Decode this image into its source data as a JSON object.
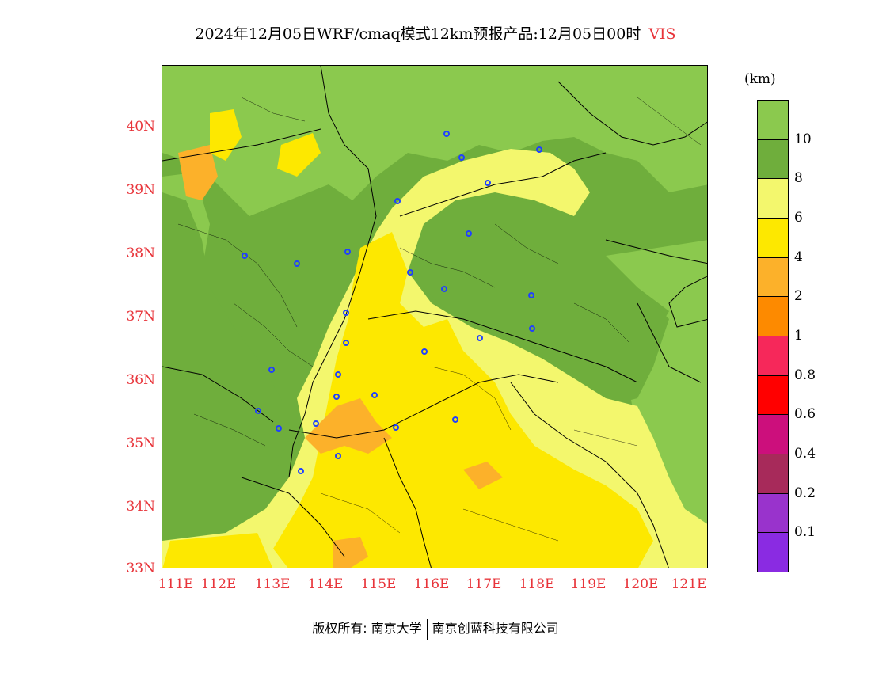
{
  "title": {
    "text": "2024年12月05日WRF/cmaq模式12km预报产品:12月05日00时",
    "variable": "VIS"
  },
  "map": {
    "lat_labels": [
      "40N",
      "39N",
      "38N",
      "37N",
      "36N",
      "35N",
      "34N",
      "33N"
    ],
    "lon_labels": [
      "111E",
      "112E",
      "113E",
      "114E",
      "115E",
      "116E",
      "117E",
      "118E",
      "119E",
      "120E",
      "121E"
    ],
    "extent": {
      "lon_min": 111,
      "lon_max": 121.3,
      "lat_min": 33,
      "lat_max": 41
    }
  },
  "legend": {
    "unit": "(km)",
    "levels": [
      {
        "label": "10",
        "color": "#8bc94e"
      },
      {
        "label": "8",
        "color": "#6fae3c"
      },
      {
        "label": "6",
        "color": "#f3f76d"
      },
      {
        "label": "4",
        "color": "#fde800"
      },
      {
        "label": "2",
        "color": "#fcb12a"
      },
      {
        "label": "1",
        "color": "#fd8a00"
      },
      {
        "label": "0.8",
        "color": "#f6285a"
      },
      {
        "label": "0.6",
        "color": "#ff0000"
      },
      {
        "label": "0.4",
        "color": "#cc0f7c"
      },
      {
        "label": "0.2",
        "color": "#a72a5a"
      },
      {
        "label": "0.1",
        "color": "#9933cc"
      },
      {
        "label": "",
        "color": "#8a2be2"
      }
    ]
  },
  "footer": {
    "copyright": "版权所有: 南京大学",
    "company": "南京创蓝科技有限公司"
  }
}
